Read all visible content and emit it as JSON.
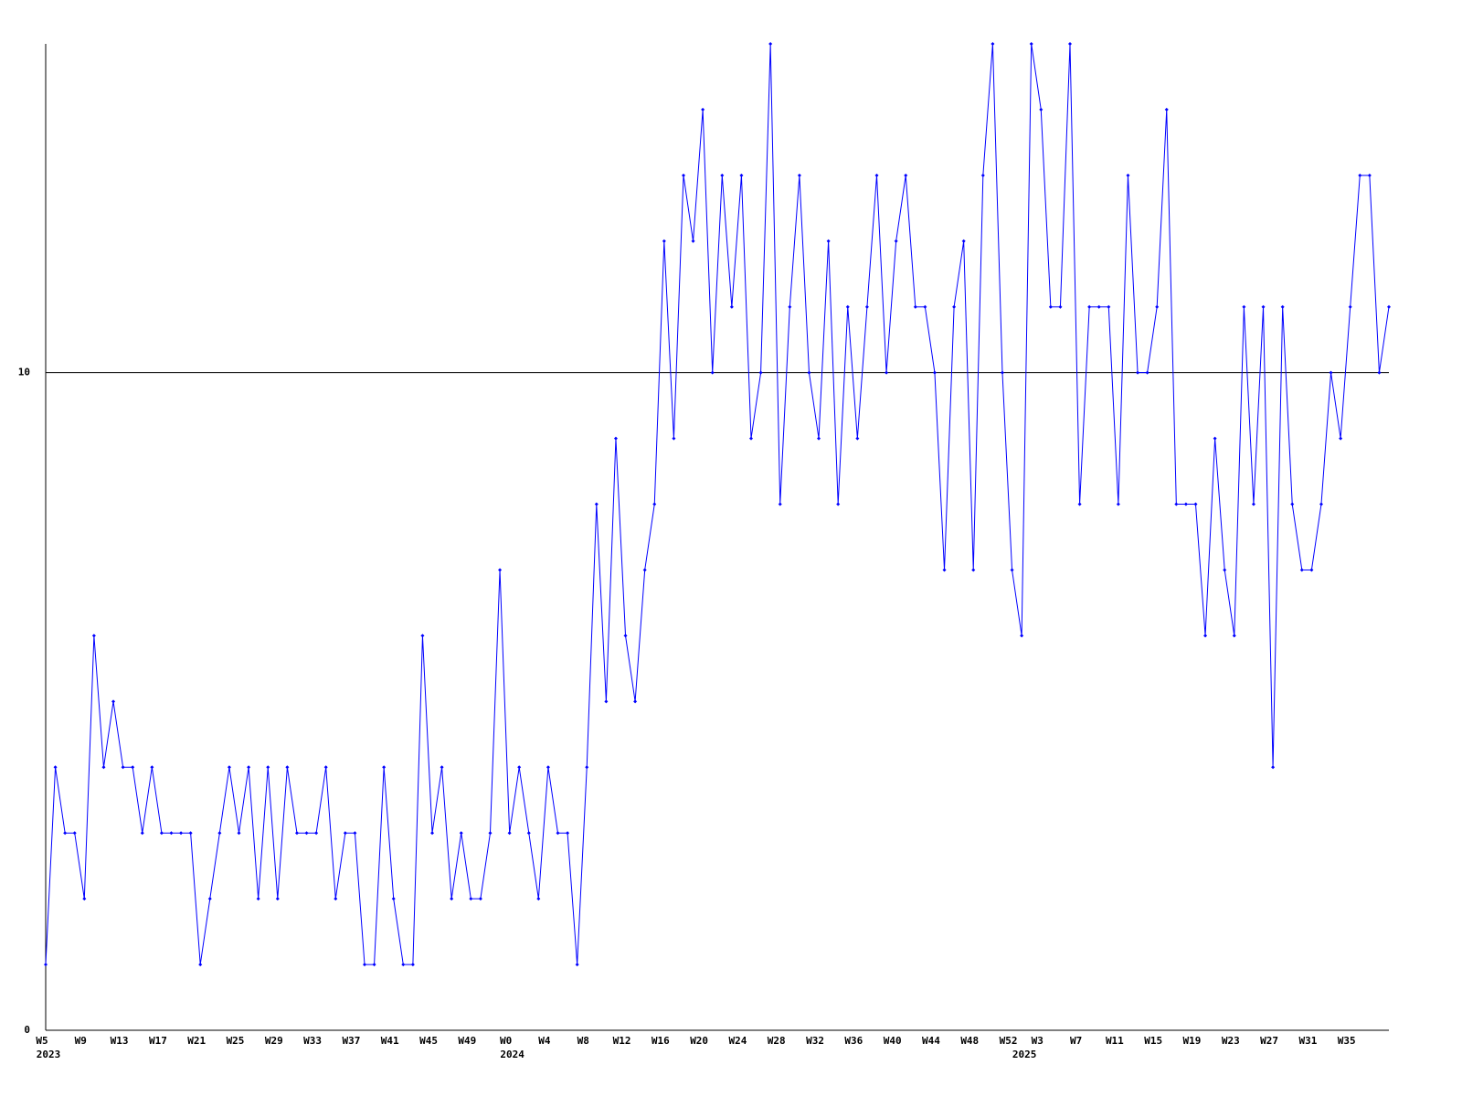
{
  "chart_data": {
    "type": "line",
    "categories": [
      "W5",
      null,
      null,
      null,
      "W9",
      null,
      null,
      null,
      "W13",
      null,
      null,
      null,
      "W17",
      null,
      null,
      null,
      "W21",
      null,
      null,
      null,
      "W25",
      null,
      null,
      null,
      "W29",
      null,
      null,
      null,
      "W33",
      null,
      null,
      null,
      "W37",
      null,
      null,
      null,
      "W41",
      null,
      null,
      null,
      "W45",
      null,
      null,
      null,
      "W49",
      null,
      null,
      null,
      "W0",
      null,
      null,
      null,
      "W4",
      null,
      null,
      null,
      "W8",
      null,
      null,
      null,
      "W12",
      null,
      null,
      null,
      "W16",
      null,
      null,
      null,
      "W20",
      null,
      null,
      null,
      "W24",
      null,
      null,
      null,
      "W28",
      null,
      null,
      null,
      "W32",
      null,
      null,
      null,
      "W36",
      null,
      null,
      null,
      "W40",
      null,
      null,
      null,
      "W44",
      null,
      null,
      null,
      "W48",
      null,
      null,
      null,
      "W52",
      null,
      null,
      "W3",
      null,
      null,
      null,
      "W7",
      null,
      null,
      null,
      "W11",
      null,
      null,
      null,
      "W15",
      null,
      null,
      null,
      "W19",
      null,
      null,
      null,
      "W23",
      null,
      null,
      null,
      "W27",
      null,
      null,
      null,
      "W31",
      null,
      null,
      null,
      "W35",
      null,
      null,
      null,
      null
    ],
    "year_labels": [
      "2023",
      null,
      null,
      null,
      null,
      null,
      null,
      null,
      null,
      null,
      null,
      null,
      null,
      null,
      null,
      null,
      null,
      null,
      null,
      null,
      null,
      null,
      null,
      null,
      null,
      null,
      null,
      null,
      null,
      null,
      null,
      null,
      null,
      null,
      null,
      null,
      null,
      null,
      null,
      null,
      null,
      null,
      null,
      null,
      null,
      null,
      null,
      null,
      "2024",
      null,
      null,
      null,
      null,
      null,
      null,
      null,
      null,
      null,
      null,
      null,
      null,
      null,
      null,
      null,
      null,
      null,
      null,
      null,
      null,
      null,
      null,
      null,
      null,
      null,
      null,
      null,
      null,
      null,
      null,
      null,
      null,
      null,
      null,
      null,
      null,
      null,
      null,
      null,
      null,
      null,
      null,
      null,
      null,
      null,
      null,
      null,
      null,
      null,
      null,
      null,
      null,
      "2025",
      null,
      null,
      null,
      null,
      null,
      null,
      null,
      null,
      null,
      null,
      null,
      null,
      null,
      null,
      null,
      null,
      null,
      null,
      null,
      null,
      null,
      null,
      null,
      null,
      null,
      null,
      null,
      null,
      null,
      null,
      null,
      null,
      null,
      null,
      null,
      null,
      null,
      null
    ],
    "series": [
      {
        "color": "#0000ff",
        "values": [
          1,
          4,
          3,
          3,
          2,
          6,
          4,
          5,
          4,
          4,
          3,
          4,
          3,
          3,
          3,
          3,
          1,
          2,
          3,
          4,
          3,
          4,
          2,
          4,
          2,
          4,
          3,
          3,
          3,
          4,
          2,
          3,
          3,
          1,
          1,
          4,
          2,
          1,
          1,
          6,
          3,
          4,
          2,
          3,
          2,
          2,
          3,
          7,
          3,
          4,
          3,
          2,
          4,
          3,
          3,
          1,
          4,
          8,
          5,
          9,
          6,
          5,
          7,
          8,
          12,
          9,
          13,
          12,
          14,
          10,
          13,
          11,
          13,
          9,
          10,
          15,
          8,
          11,
          13,
          10,
          9,
          12,
          8,
          11,
          9,
          11,
          13,
          10,
          12,
          13,
          11,
          11,
          10,
          7,
          11,
          12,
          7,
          13,
          15,
          10,
          7,
          6,
          15,
          14,
          11,
          11,
          15,
          8,
          11,
          11,
          11,
          8,
          13,
          10,
          10,
          11,
          14,
          8,
          8,
          8,
          6,
          9,
          7,
          6,
          11,
          8,
          11,
          4,
          11,
          8,
          7,
          7,
          8,
          10,
          9,
          11,
          13,
          13,
          10,
          11
        ]
      }
    ],
    "ylim": [
      0,
      15
    ],
    "yticks": [
      0,
      10
    ],
    "grid": true
  }
}
